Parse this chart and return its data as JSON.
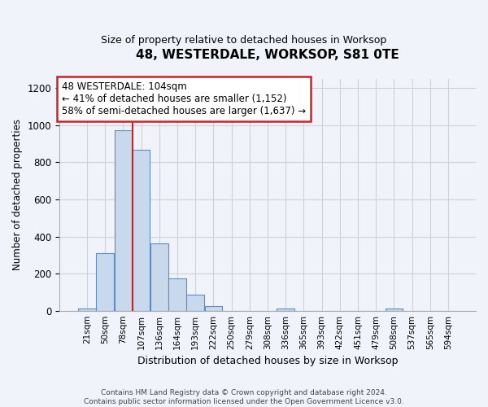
{
  "title": "48, WESTERDALE, WORKSOP, S81 0TE",
  "subtitle": "Size of property relative to detached houses in Worksop",
  "xlabel": "Distribution of detached houses by size in Worksop",
  "ylabel": "Number of detached properties",
  "footer_line1": "Contains HM Land Registry data © Crown copyright and database right 2024.",
  "footer_line2": "Contains public sector information licensed under the Open Government Licence v3.0.",
  "bin_labels": [
    "21sqm",
    "50sqm",
    "78sqm",
    "107sqm",
    "136sqm",
    "164sqm",
    "193sqm",
    "222sqm",
    "250sqm",
    "279sqm",
    "308sqm",
    "336sqm",
    "365sqm",
    "393sqm",
    "422sqm",
    "451sqm",
    "479sqm",
    "508sqm",
    "537sqm",
    "565sqm",
    "594sqm"
  ],
  "bar_values": [
    12,
    310,
    975,
    870,
    365,
    175,
    85,
    25,
    0,
    0,
    0,
    12,
    0,
    0,
    0,
    0,
    0,
    12,
    0,
    0,
    0
  ],
  "bar_color": "#c8d9ee",
  "bar_edge_color": "#5b8dc8",
  "annotation_line1": "48 WESTERDALE: 104sqm",
  "annotation_line2": "← 41% of detached houses are smaller (1,152)",
  "annotation_line3": "58% of semi-detached houses are larger (1,637) →",
  "annotation_box_facecolor": "#ffffff",
  "annotation_box_edgecolor": "#cc2222",
  "marker_line_color": "#cc2222",
  "marker_bar_index": 2.5,
  "ylim": [
    0,
    1250
  ],
  "yticks": [
    0,
    200,
    400,
    600,
    800,
    1000,
    1200
  ],
  "grid_color": "#d0d0d8",
  "background_color": "#f0f4fa",
  "title_fontsize": 11,
  "subtitle_fontsize": 9
}
